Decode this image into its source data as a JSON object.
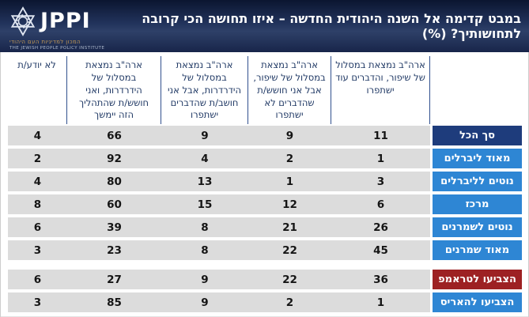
{
  "logo": {
    "acronym": "JPPI",
    "hebrew_name": "המכון למדיניות העם היהודי",
    "english_name": "THE JEWISH PEOPLE POLICY INSTITUTE"
  },
  "title": "במבט קדימה אל השנה היהודית החדשה – איזו תחושה הכי קרובה לתחושותיך? (%)",
  "colors": {
    "banner_navy": "#1b2a4c",
    "header_text_navy": "#1f3864",
    "separator_blue": "#31508e",
    "cell_gray": "#dcdcdc",
    "label_blue": "#2e86d4",
    "label_dark_blue": "#1e3c7c",
    "label_red": "#9d2123"
  },
  "chart_data": {
    "type": "table",
    "direction": "rtl",
    "unit": "%",
    "title": "במבט קדימה אל השנה היהודית החדשה – איזו תחושה הכי קרובה לתחושותיך? (%)",
    "columns": [
      "ארה\"ב נמצאת במסלול של שיפור, והדברים עוד ישתפרו",
      "ארה\"ב נמצאת במסלול של שיפור, אבל אני חושש/ת שהדברים לא ישתפרו",
      "ארה\"ב נמצאת במסלול של הידרדרות, אבל אני חושב/ת שהדברים ישתפרו",
      "ארה\"ב נמצאת במסלול של הידרדרות, ואני חושש/ת שהתהליך הזה יימשך",
      "לא יודע/ת"
    ],
    "rows": [
      {
        "label": "סך הכל",
        "style": "total",
        "separated": false,
        "values": [
          11,
          9,
          9,
          66,
          4
        ]
      },
      {
        "label": "מאוד ליברלים",
        "style": "group",
        "separated": false,
        "values": [
          1,
          2,
          4,
          92,
          2
        ]
      },
      {
        "label": "נוטים לליברלים",
        "style": "group",
        "separated": false,
        "values": [
          3,
          1,
          13,
          80,
          4
        ]
      },
      {
        "label": "מרכז",
        "style": "group",
        "separated": false,
        "values": [
          6,
          12,
          15,
          60,
          8
        ]
      },
      {
        "label": "נוטים לשמרנים",
        "style": "group",
        "separated": false,
        "values": [
          26,
          21,
          8,
          39,
          6
        ]
      },
      {
        "label": "מאוד שמרנים",
        "style": "group",
        "separated": false,
        "values": [
          45,
          22,
          8,
          23,
          3
        ]
      },
      {
        "label": "הצביעו לטראמפ",
        "style": "trump",
        "separated": true,
        "values": [
          36,
          22,
          9,
          27,
          6
        ]
      },
      {
        "label": "הצביעו להאריס",
        "style": "group",
        "separated": false,
        "values": [
          1,
          2,
          9,
          85,
          3
        ]
      }
    ]
  }
}
